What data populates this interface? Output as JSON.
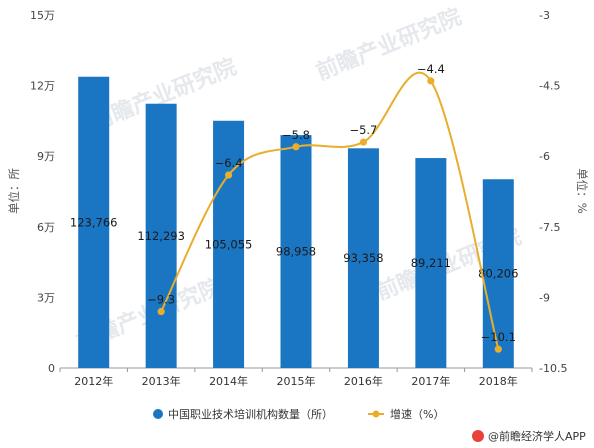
{
  "chart_data": {
    "type": "bar",
    "categories": [
      "2012年",
      "2013年",
      "2014年",
      "2015年",
      "2016年",
      "2017年",
      "2018年"
    ],
    "series": [
      {
        "name": "中国职业技术培训机构数量（所）",
        "kind": "bar",
        "axis": "left",
        "values": [
          123766,
          112293,
          105055,
          98958,
          93358,
          89211,
          80206
        ],
        "labels": [
          "123,766",
          "112,293",
          "105,055",
          "98,958",
          "93,358",
          "89,211",
          "80,206"
        ],
        "color": "#1a76c2"
      },
      {
        "name": "增速（%）",
        "kind": "line",
        "smooth": true,
        "axis": "right",
        "values": [
          null,
          -9.3,
          -6.4,
          -5.8,
          -5.7,
          -4.4,
          -10.1
        ],
        "labels": [
          "",
          "−9.3",
          "−6.4",
          "−5.8",
          "−5.7",
          "−4.4",
          "−10.1"
        ],
        "color": "#e8ae2c"
      }
    ],
    "ylabel_left": "单位：所",
    "ylabel_right": "单位：%",
    "ylim_left": [
      0,
      150000
    ],
    "ylim_right": [
      -10.5,
      -3
    ],
    "yticks_left": [
      {
        "value": 0,
        "label": "0"
      },
      {
        "value": 30000,
        "label": "3万"
      },
      {
        "value": 60000,
        "label": "6万"
      },
      {
        "value": 90000,
        "label": "9万"
      },
      {
        "value": 120000,
        "label": "12万"
      },
      {
        "value": 150000,
        "label": "15万"
      }
    ],
    "yticks_right": [
      {
        "value": -10.5,
        "label": "-10.5"
      },
      {
        "value": -9,
        "label": "-9"
      },
      {
        "value": -7.5,
        "label": "-7.5"
      },
      {
        "value": -6,
        "label": "-6"
      },
      {
        "value": -4.5,
        "label": "-4.5"
      },
      {
        "value": -3,
        "label": "-3"
      }
    ],
    "grid": false,
    "legend_position": "bottom"
  },
  "credit": "@前瞻经济学人APP",
  "watermark": "前瞻产业研究院",
  "colors": {
    "credit_icon": "#e8423a",
    "axis": "#999999"
  }
}
